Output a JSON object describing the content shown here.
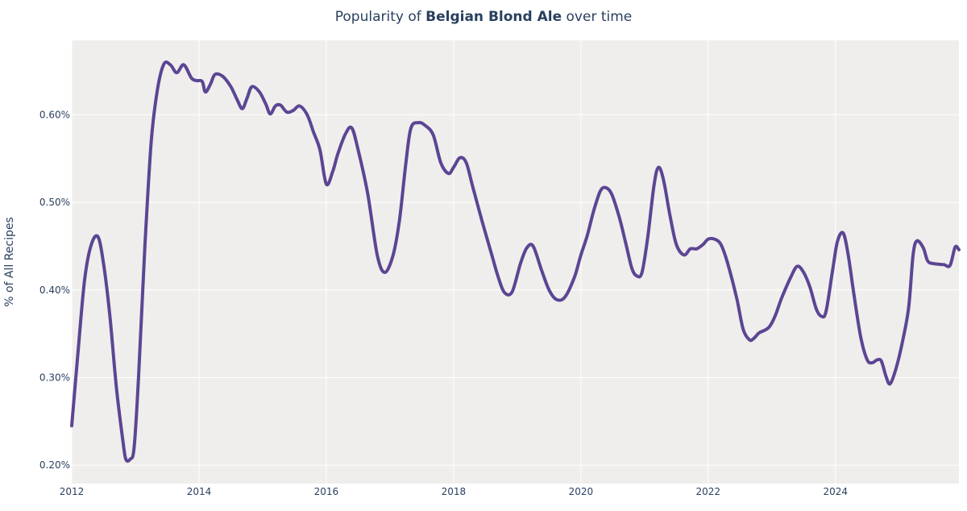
{
  "chart_data": {
    "type": "line",
    "title_prefix": "Popularity of ",
    "title_bold": "Belgian Blond Ale",
    "title_suffix": " over time",
    "xlabel": "",
    "ylabel": "% of All Recipes",
    "xlim": [
      2012,
      2025.94
    ],
    "ylim": [
      0.179,
      0.685
    ],
    "x_ticks": [
      2012,
      2014,
      2016,
      2018,
      2020,
      2022,
      2024
    ],
    "x_tick_labels": [
      "2012",
      "2014",
      "2016",
      "2018",
      "2020",
      "2022",
      "2024"
    ],
    "y_ticks": [
      0.2,
      0.3,
      0.4,
      0.5,
      0.6
    ],
    "y_tick_labels": [
      "0.20%",
      "0.30%",
      "0.40%",
      "0.50%",
      "0.60%"
    ],
    "grid": true,
    "colors": {
      "line": "#5c4594",
      "plot_bg": "#efeeec",
      "grid": "#ffffff",
      "text": "#2a3f5f"
    },
    "series": [
      {
        "x": [
          2012.0,
          2012.1,
          2012.2,
          2012.3,
          2012.41,
          2012.5,
          2012.6,
          2012.7,
          2012.8,
          2012.85,
          2012.92,
          2012.98,
          2013.05,
          2013.15,
          2013.25,
          2013.35,
          2013.45,
          2013.55,
          2013.65,
          2013.76,
          2013.88,
          2013.96,
          2014.05,
          2014.1,
          2014.18,
          2014.25,
          2014.37,
          2014.5,
          2014.6,
          2014.68,
          2014.75,
          2014.83,
          2014.95,
          2015.05,
          2015.12,
          2015.2,
          2015.28,
          2015.38,
          2015.48,
          2015.58,
          2015.7,
          2015.8,
          2015.9,
          2016.0,
          2016.1,
          2016.18,
          2016.3,
          2016.4,
          2016.5,
          2016.65,
          2016.8,
          2016.92,
          2017.05,
          2017.15,
          2017.25,
          2017.33,
          2017.45,
          2017.55,
          2017.68,
          2017.8,
          2017.92,
          2018.0,
          2018.1,
          2018.2,
          2018.3,
          2018.45,
          2018.6,
          2018.7,
          2018.8,
          2018.92,
          2019.05,
          2019.15,
          2019.25,
          2019.38,
          2019.5,
          2019.62,
          2019.75,
          2019.9,
          2020.0,
          2020.1,
          2020.2,
          2020.3,
          2020.38,
          2020.48,
          2020.6,
          2020.7,
          2020.8,
          2020.88,
          2020.96,
          2021.05,
          2021.15,
          2021.22,
          2021.3,
          2021.4,
          2021.5,
          2021.62,
          2021.72,
          2021.82,
          2021.92,
          2022.0,
          2022.1,
          2022.2,
          2022.3,
          2022.45,
          2022.55,
          2022.65,
          2022.72,
          2022.8,
          2022.95,
          2023.05,
          2023.15,
          2023.3,
          2023.4,
          2023.5,
          2023.6,
          2023.7,
          2023.78,
          2023.85,
          2023.95,
          2024.03,
          2024.12,
          2024.2,
          2024.3,
          2024.4,
          2024.5,
          2024.58,
          2024.65,
          2024.72,
          2024.8,
          2024.86,
          2024.95,
          2025.05,
          2025.15,
          2025.22,
          2025.28,
          2025.38,
          2025.45,
          2025.55,
          2025.7,
          2025.8,
          2025.88,
          2025.94
        ],
        "y": [
          0.245,
          0.33,
          0.41,
          0.45,
          0.461,
          0.43,
          0.37,
          0.29,
          0.23,
          0.207,
          0.207,
          0.22,
          0.3,
          0.45,
          0.57,
          0.63,
          0.658,
          0.657,
          0.648,
          0.657,
          0.642,
          0.639,
          0.638,
          0.626,
          0.635,
          0.646,
          0.644,
          0.632,
          0.617,
          0.607,
          0.618,
          0.632,
          0.626,
          0.612,
          0.601,
          0.61,
          0.611,
          0.603,
          0.605,
          0.61,
          0.6,
          0.58,
          0.56,
          0.521,
          0.535,
          0.555,
          0.578,
          0.585,
          0.56,
          0.51,
          0.44,
          0.42,
          0.44,
          0.48,
          0.545,
          0.585,
          0.591,
          0.588,
          0.577,
          0.545,
          0.533,
          0.54,
          0.551,
          0.545,
          0.518,
          0.478,
          0.44,
          0.415,
          0.397,
          0.398,
          0.43,
          0.448,
          0.45,
          0.423,
          0.4,
          0.389,
          0.392,
          0.415,
          0.44,
          0.462,
          0.49,
          0.512,
          0.517,
          0.51,
          0.484,
          0.455,
          0.425,
          0.416,
          0.42,
          0.46,
          0.52,
          0.54,
          0.525,
          0.485,
          0.452,
          0.44,
          0.447,
          0.447,
          0.452,
          0.458,
          0.458,
          0.452,
          0.432,
          0.39,
          0.355,
          0.343,
          0.345,
          0.351,
          0.357,
          0.37,
          0.39,
          0.415,
          0.427,
          0.42,
          0.403,
          0.378,
          0.37,
          0.375,
          0.42,
          0.455,
          0.465,
          0.44,
          0.39,
          0.345,
          0.32,
          0.317,
          0.32,
          0.319,
          0.3,
          0.293,
          0.31,
          0.34,
          0.38,
          0.44,
          0.456,
          0.448,
          0.433,
          0.43,
          0.429,
          0.428,
          0.449,
          0.446
        ]
      }
    ]
  }
}
